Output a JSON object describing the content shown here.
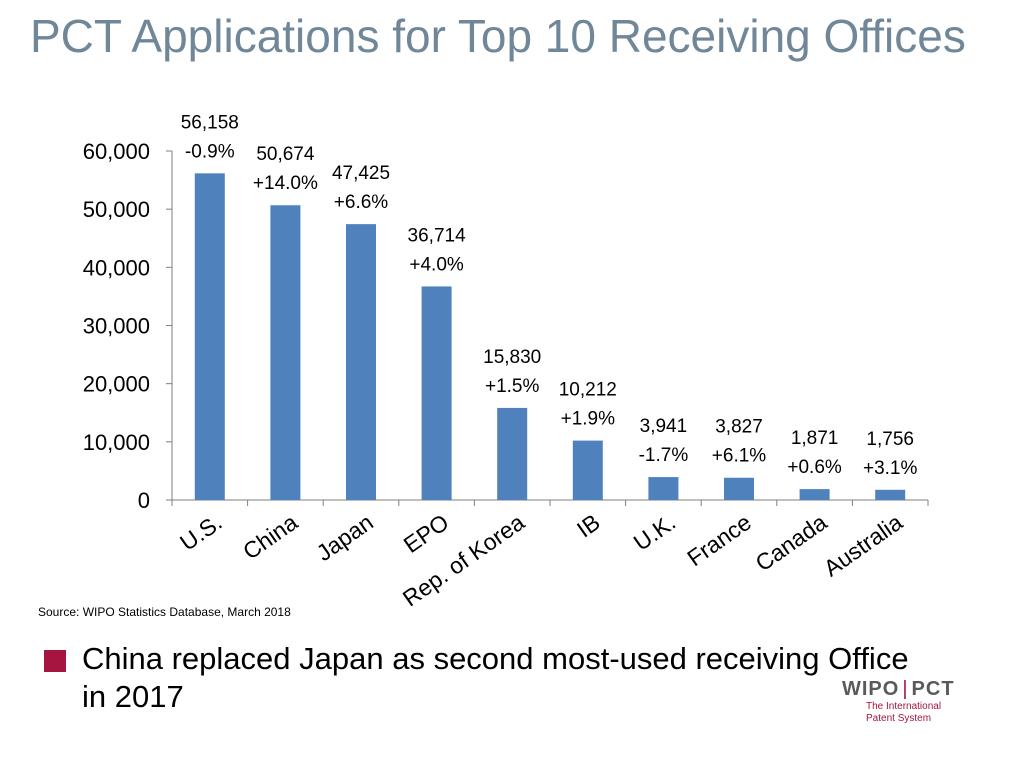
{
  "slide": {
    "title": "PCT Applications for Top 10 Receiving Offices",
    "source": "Source:  WIPO Statistics Database, March 2018",
    "bullet": "China replaced Japan as second most-used receiving Office in 2017",
    "logo": {
      "left": "WIPO",
      "right": "PCT",
      "line1": "The International",
      "line2": "Patent System"
    }
  },
  "colors": {
    "bar": "#4f81bd",
    "title": "#6f8798",
    "bullet": "#a6153f"
  },
  "chart_data": {
    "type": "bar",
    "title": "",
    "xlabel": "",
    "ylabel": "",
    "ylim": [
      0,
      60000
    ],
    "yticks": [
      0,
      10000,
      20000,
      30000,
      40000,
      50000,
      60000
    ],
    "ytick_labels": [
      "0",
      "10,000",
      "20,000",
      "30,000",
      "40,000",
      "50,000",
      "60,000"
    ],
    "grid": false,
    "categories": [
      "U.S.",
      "China",
      "Japan",
      "EPO",
      "Rep. of Korea",
      "IB",
      "U.K.",
      "France",
      "Canada",
      "Australia"
    ],
    "values": [
      56158,
      50674,
      47425,
      36714,
      15830,
      10212,
      3941,
      3827,
      1871,
      1756
    ],
    "value_labels": [
      "56,158",
      "50,674",
      "47,425",
      "36,714",
      "15,830",
      "10,212",
      "3,941",
      "3,827",
      "1,871",
      "1,756"
    ],
    "growth_labels": [
      "-0.9%",
      "+14.0%",
      "+6.6%",
      "+4.0%",
      "+1.5%",
      "+1.9%",
      "-1.7%",
      "+6.1%",
      "+0.6%",
      "+3.1%"
    ]
  }
}
